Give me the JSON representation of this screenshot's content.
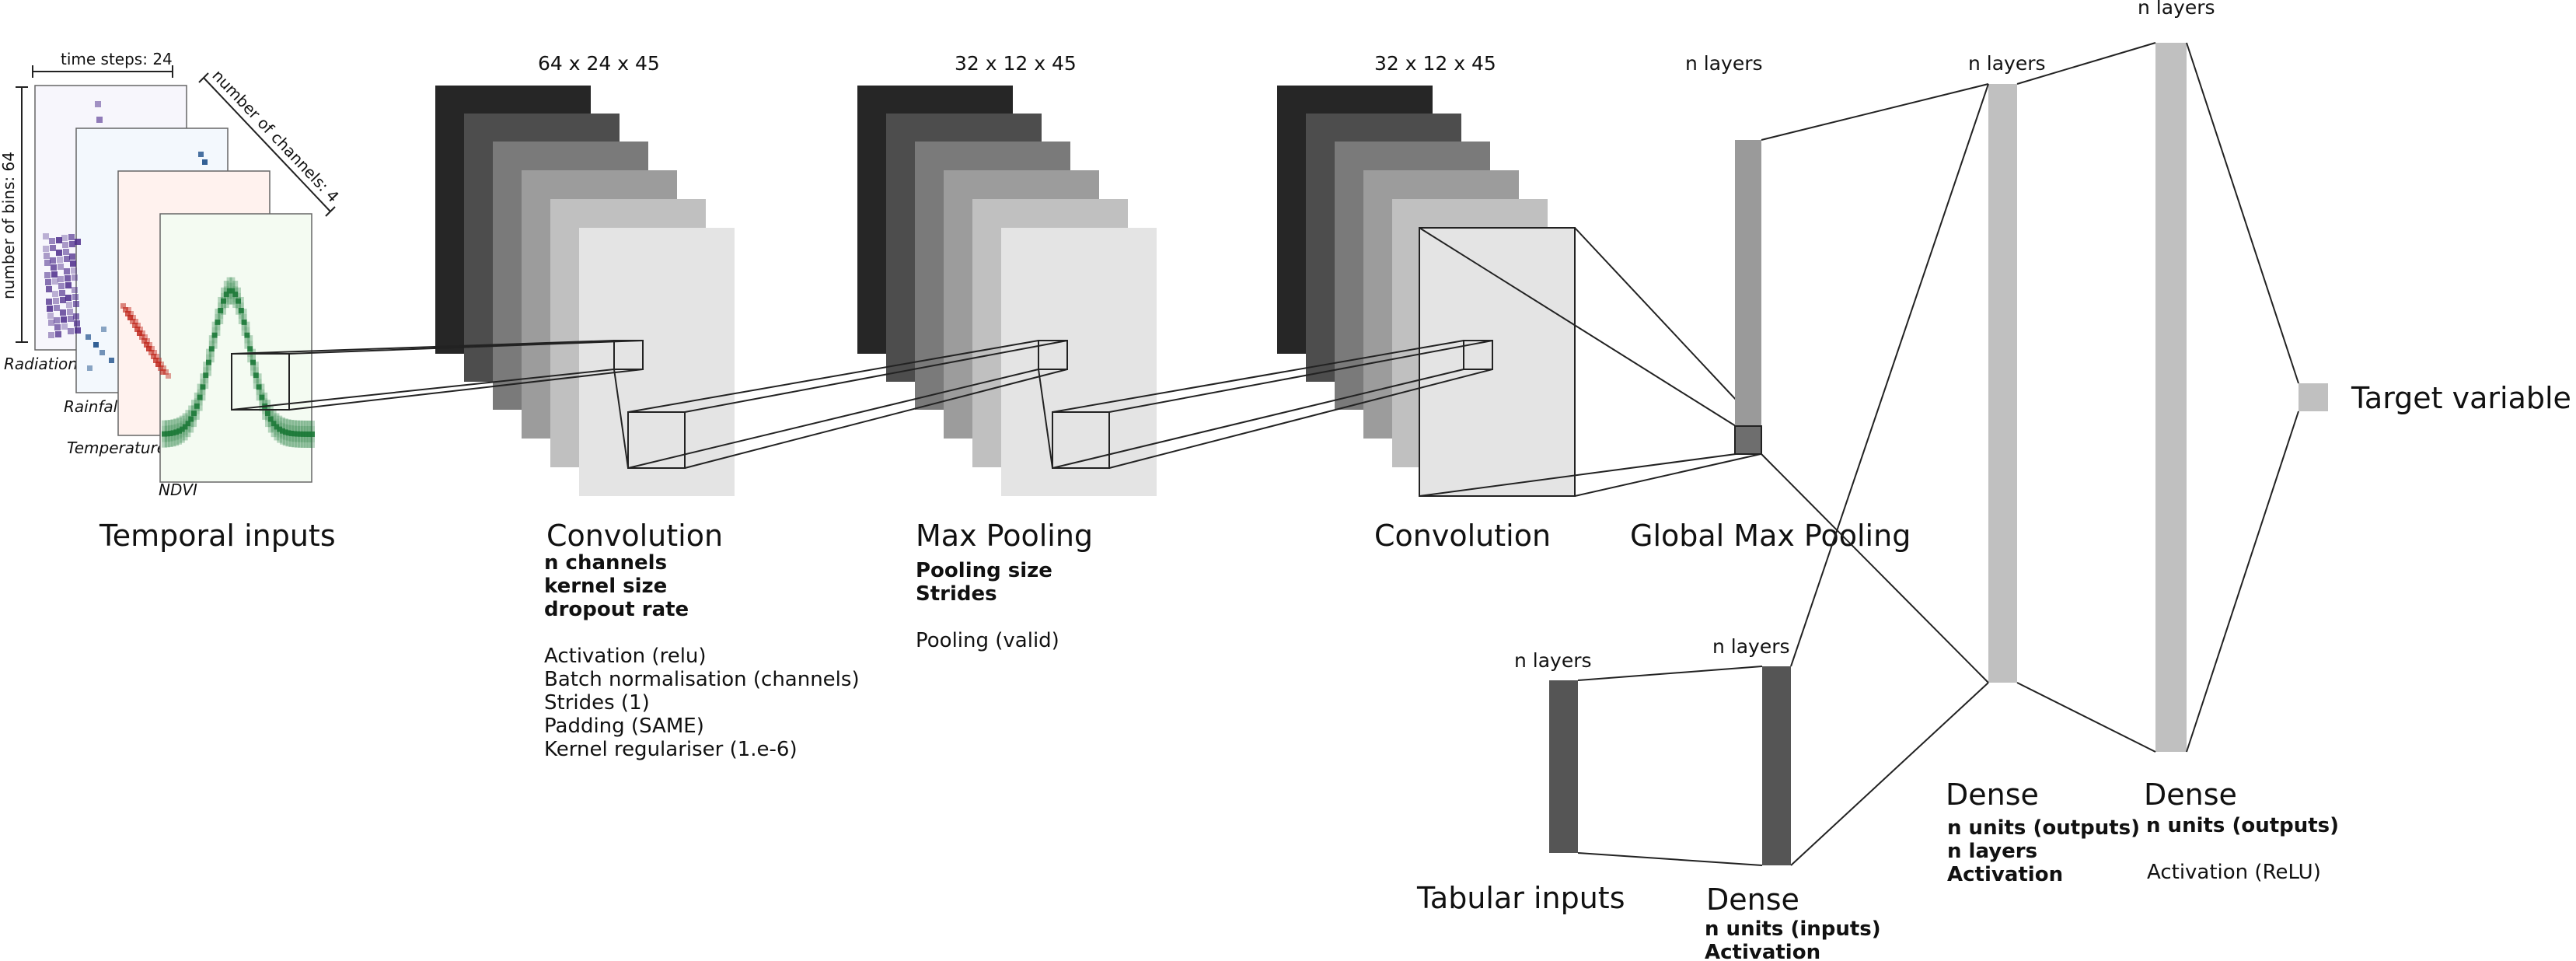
{
  "inputs": {
    "title": "Temporal inputs",
    "time_steps": "time steps: 24",
    "bins": "number of bins: 64",
    "channels": "number of channels: 4",
    "channel_names": [
      "Radiation",
      "Rainfall",
      "Temperature",
      "NDVI"
    ]
  },
  "conv1": {
    "dims": "64 x 24 x 45",
    "title": "Convolution",
    "params_bold": [
      "n channels",
      "kernel size",
      "dropout rate"
    ],
    "params": [
      "Activation (relu)",
      "Batch normalisation (channels)",
      "Strides (1)",
      "Padding (SAME)",
      "Kernel regulariser (1.e-6)"
    ]
  },
  "pool": {
    "dims": "32 x 12 x 45",
    "title": "Max Pooling",
    "params_bold": [
      "Pooling size",
      "Strides"
    ],
    "params": [
      "Pooling (valid)"
    ]
  },
  "conv2": {
    "dims": "32 x 12 x 45",
    "title": "Convolution"
  },
  "gmp": {
    "dims": "n  layers",
    "title": "Global Max Pooling"
  },
  "tabular": {
    "dims": "n  layers",
    "title": "Tabular inputs"
  },
  "dense_tab": {
    "dims": "n  layers",
    "title": "Dense",
    "params_bold": [
      "n units (inputs)",
      "Activation"
    ]
  },
  "dense1": {
    "dims": "n  layers",
    "title": "Dense",
    "params_bold": [
      "n units (outputs)",
      "n layers",
      "Activation"
    ]
  },
  "dense2": {
    "dims": "n  layers",
    "title": "Dense",
    "params_bold": [
      "n units (outputs)"
    ],
    "params": [
      "Activation (ReLU)"
    ]
  },
  "output": {
    "title": "Target variable"
  },
  "colors": {
    "stack": [
      "#262626",
      "#4d4d4d",
      "#7a7a7a",
      "#9c9c9c",
      "#c0c0c0",
      "#e4e4e4"
    ],
    "dense": "#c0c0c0",
    "gmp": "#9a9a9a",
    "tabular": "#555555",
    "radiation": "#4b2a8a",
    "rainfall": "#1d4f8a",
    "temperature": "#c0281d",
    "ndvi": "#1f7a3a"
  }
}
